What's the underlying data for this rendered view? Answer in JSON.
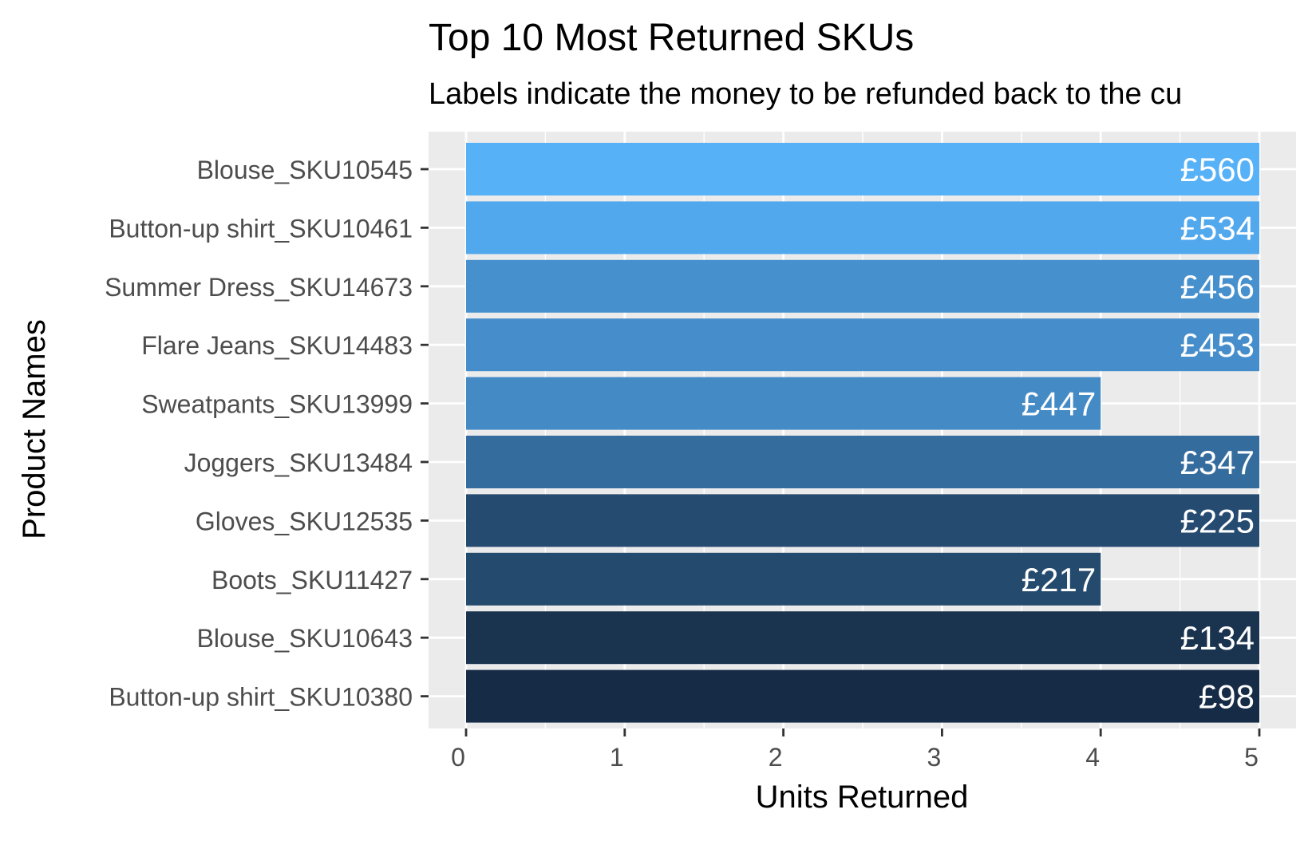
{
  "chart_data": {
    "type": "bar",
    "orientation": "horizontal",
    "title": "Top 10 Most Returned SKUs",
    "subtitle": "Labels indicate the money to be refunded back to the cu",
    "xlabel": "Units Returned",
    "ylabel": "Product Names",
    "xlim": [
      0,
      5
    ],
    "xticks": [
      "0",
      "1",
      "2",
      "3",
      "4",
      "5"
    ],
    "grid": true,
    "legend": "none",
    "categories": [
      "Blouse_SKU10545",
      "Button-up shirt_SKU10461",
      "Summer Dress_SKU14673",
      "Flare Jeans_SKU14483",
      "Sweatpants_SKU13999",
      "Joggers_SKU13484",
      "Gloves_SKU12535",
      "Boots_SKU11427",
      "Blouse_SKU10643",
      "Button-up shirt_SKU10380"
    ],
    "values": [
      5,
      5,
      5,
      5,
      4,
      5,
      5,
      4,
      5,
      5
    ],
    "labels": [
      "£560",
      "£534",
      "£456",
      "£453",
      "£447",
      "£347",
      "£225",
      "£217",
      "£134",
      "£98"
    ],
    "colors": [
      "#56B1F7",
      "#52A8EC",
      "#4790CE",
      "#468ECB",
      "#448BC6",
      "#356C9E",
      "#264B71",
      "#244A6D",
      "#1A334F",
      "#162B45"
    ]
  }
}
